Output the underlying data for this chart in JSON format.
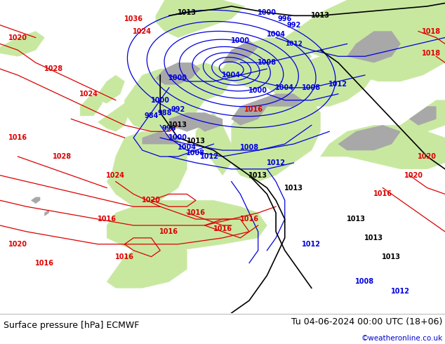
{
  "title_left": "Surface pressure [hPa] ECMWF",
  "title_right": "Tu 04-06-2024 00:00 UTC (18+06)",
  "copyright": "©weatheronline.co.uk",
  "fig_width": 6.34,
  "fig_height": 4.9,
  "fig_bg": "#ffffff",
  "bottom_bar_color": "#ffffff",
  "title_left_color": "#000000",
  "title_right_color": "#000000",
  "copyright_color": "#0000cc",
  "font_size_title": 9.0,
  "font_size_copyright": 7.5,
  "bottom_bar_height": 0.09,
  "ocean_color": "#d8d8d8",
  "land_green_color": "#c8e8a0",
  "land_gray_color": "#a8a8a8",
  "blue_color": "#0000dd",
  "red_color": "#dd0000",
  "black_color": "#000000",
  "line_width": 0.9
}
